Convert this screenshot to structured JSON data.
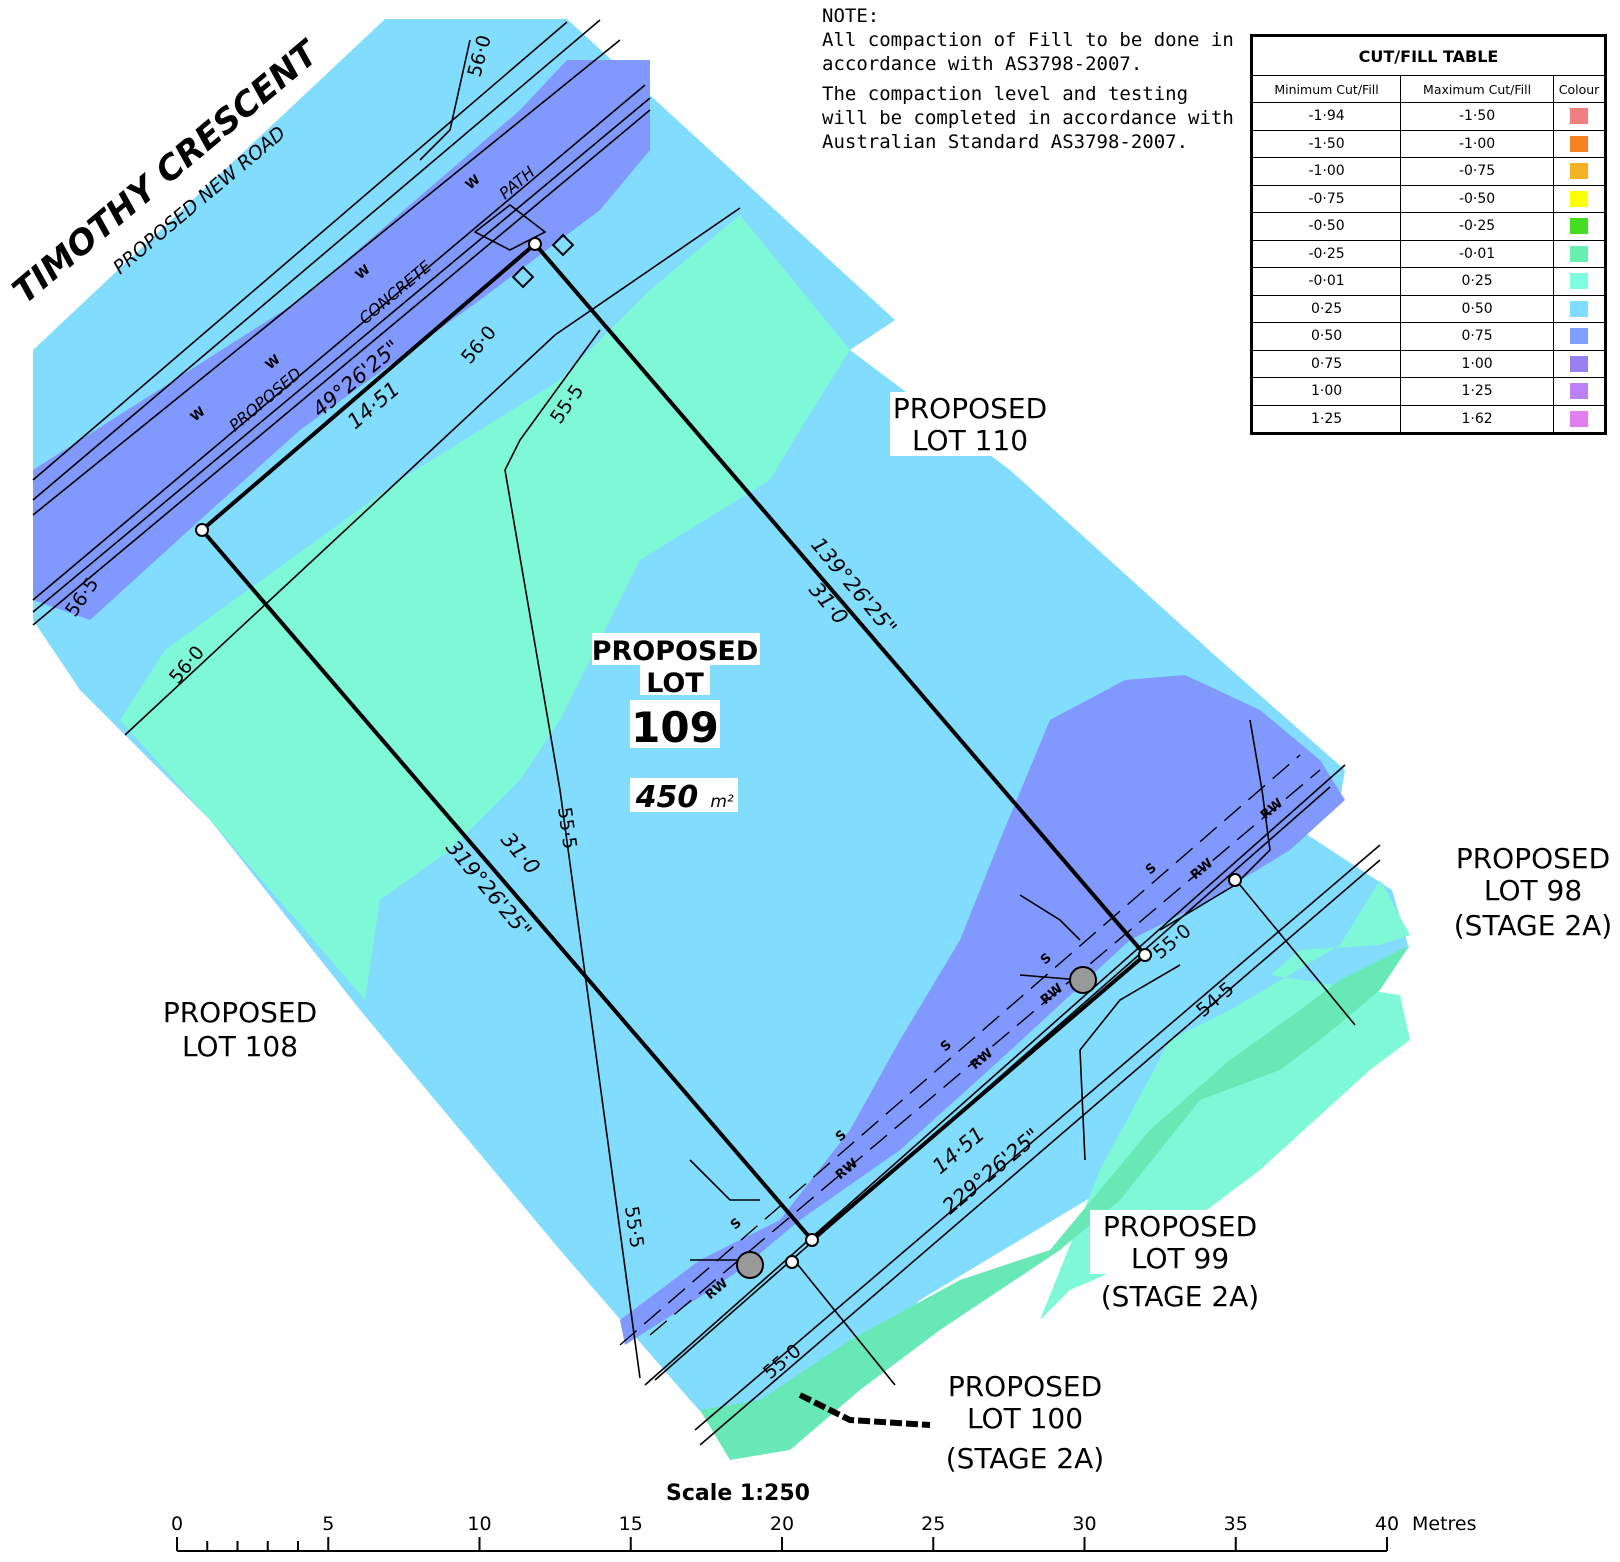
{
  "note": {
    "heading": "NOTE:",
    "line1": "All compaction of Fill to be done in accordance with AS3798-2007.",
    "line2": "The compaction level and testing will be completed in accordance with Australian Standard AS3798-2007."
  },
  "cut_fill_table": {
    "title": "CUT/FILL TABLE",
    "headers": [
      "Minimum Cut/Fill",
      "Maximum Cut/Fill",
      "Colour"
    ],
    "rows": [
      {
        "min": "-1·94",
        "max": "-1·50",
        "color": "#F08080"
      },
      {
        "min": "-1·50",
        "max": "-1·00",
        "color": "#F58220"
      },
      {
        "min": "-1·00",
        "max": "-0·75",
        "color": "#F5B324"
      },
      {
        "min": "-0·75",
        "max": "-0·50",
        "color": "#FFFF00"
      },
      {
        "min": "-0·50",
        "max": "-0·25",
        "color": "#44DD22"
      },
      {
        "min": "-0·25",
        "max": "-0·01",
        "color": "#66F0B0"
      },
      {
        "min": "-0·01",
        "max": "0·25",
        "color": "#7FFFE0"
      },
      {
        "min": "0·25",
        "max": "0·50",
        "color": "#80DDFF"
      },
      {
        "min": "0·50",
        "max": "0·75",
        "color": "#80A0FF"
      },
      {
        "min": "0·75",
        "max": "1·00",
        "color": "#9980F0"
      },
      {
        "min": "1·00",
        "max": "1·25",
        "color": "#BB80F5"
      },
      {
        "min": "1·25",
        "max": "1·62",
        "color": "#E080F0"
      }
    ]
  },
  "street": {
    "name": "TIMOTHY   CRESCENT",
    "subtitle": "PROPOSED   NEW   ROAD",
    "path_words": [
      "PROPOSED",
      "CONCRETE",
      "PATH"
    ]
  },
  "lot": {
    "heading": "PROPOSED",
    "line2": "LOT",
    "number": "109",
    "area": "450",
    "area_unit": "m²"
  },
  "bearings": {
    "front": {
      "bearing": "49°26'25\"",
      "distance": "14·51"
    },
    "rear": {
      "bearing": "229°26'25\"",
      "distance": "14·51"
    },
    "east": {
      "bearing": "139°26'25\"",
      "distance": "31·0"
    },
    "west": {
      "bearing": "319°26'25\"",
      "distance": "31·0"
    }
  },
  "neighbours": {
    "lot110": [
      "PROPOSED",
      "LOT  110"
    ],
    "lot108": [
      "PROPOSED",
      "LOT  108"
    ],
    "lot98": [
      "PROPOSED",
      "LOT  98",
      "(STAGE  2A)"
    ],
    "lot99": [
      "PROPOSED",
      "LOT  99",
      "(STAGE  2A)"
    ],
    "lot100": [
      "PROPOSED",
      "LOT  100",
      "(STAGE  2A)"
    ]
  },
  "contour_labels": [
    "56·0",
    "56·0",
    "56·0",
    "56·5",
    "55·5",
    "55·5",
    "55·5",
    "55·0",
    "55·0",
    "54·5"
  ],
  "service_codes": {
    "water": "W",
    "sewer": "S",
    "rainwater": "RW"
  },
  "scale": {
    "title": "Scale  1:250",
    "ticks": [
      "0",
      "5",
      "10",
      "15",
      "20",
      "25",
      "30",
      "35",
      "40"
    ],
    "unit": "Metres"
  }
}
